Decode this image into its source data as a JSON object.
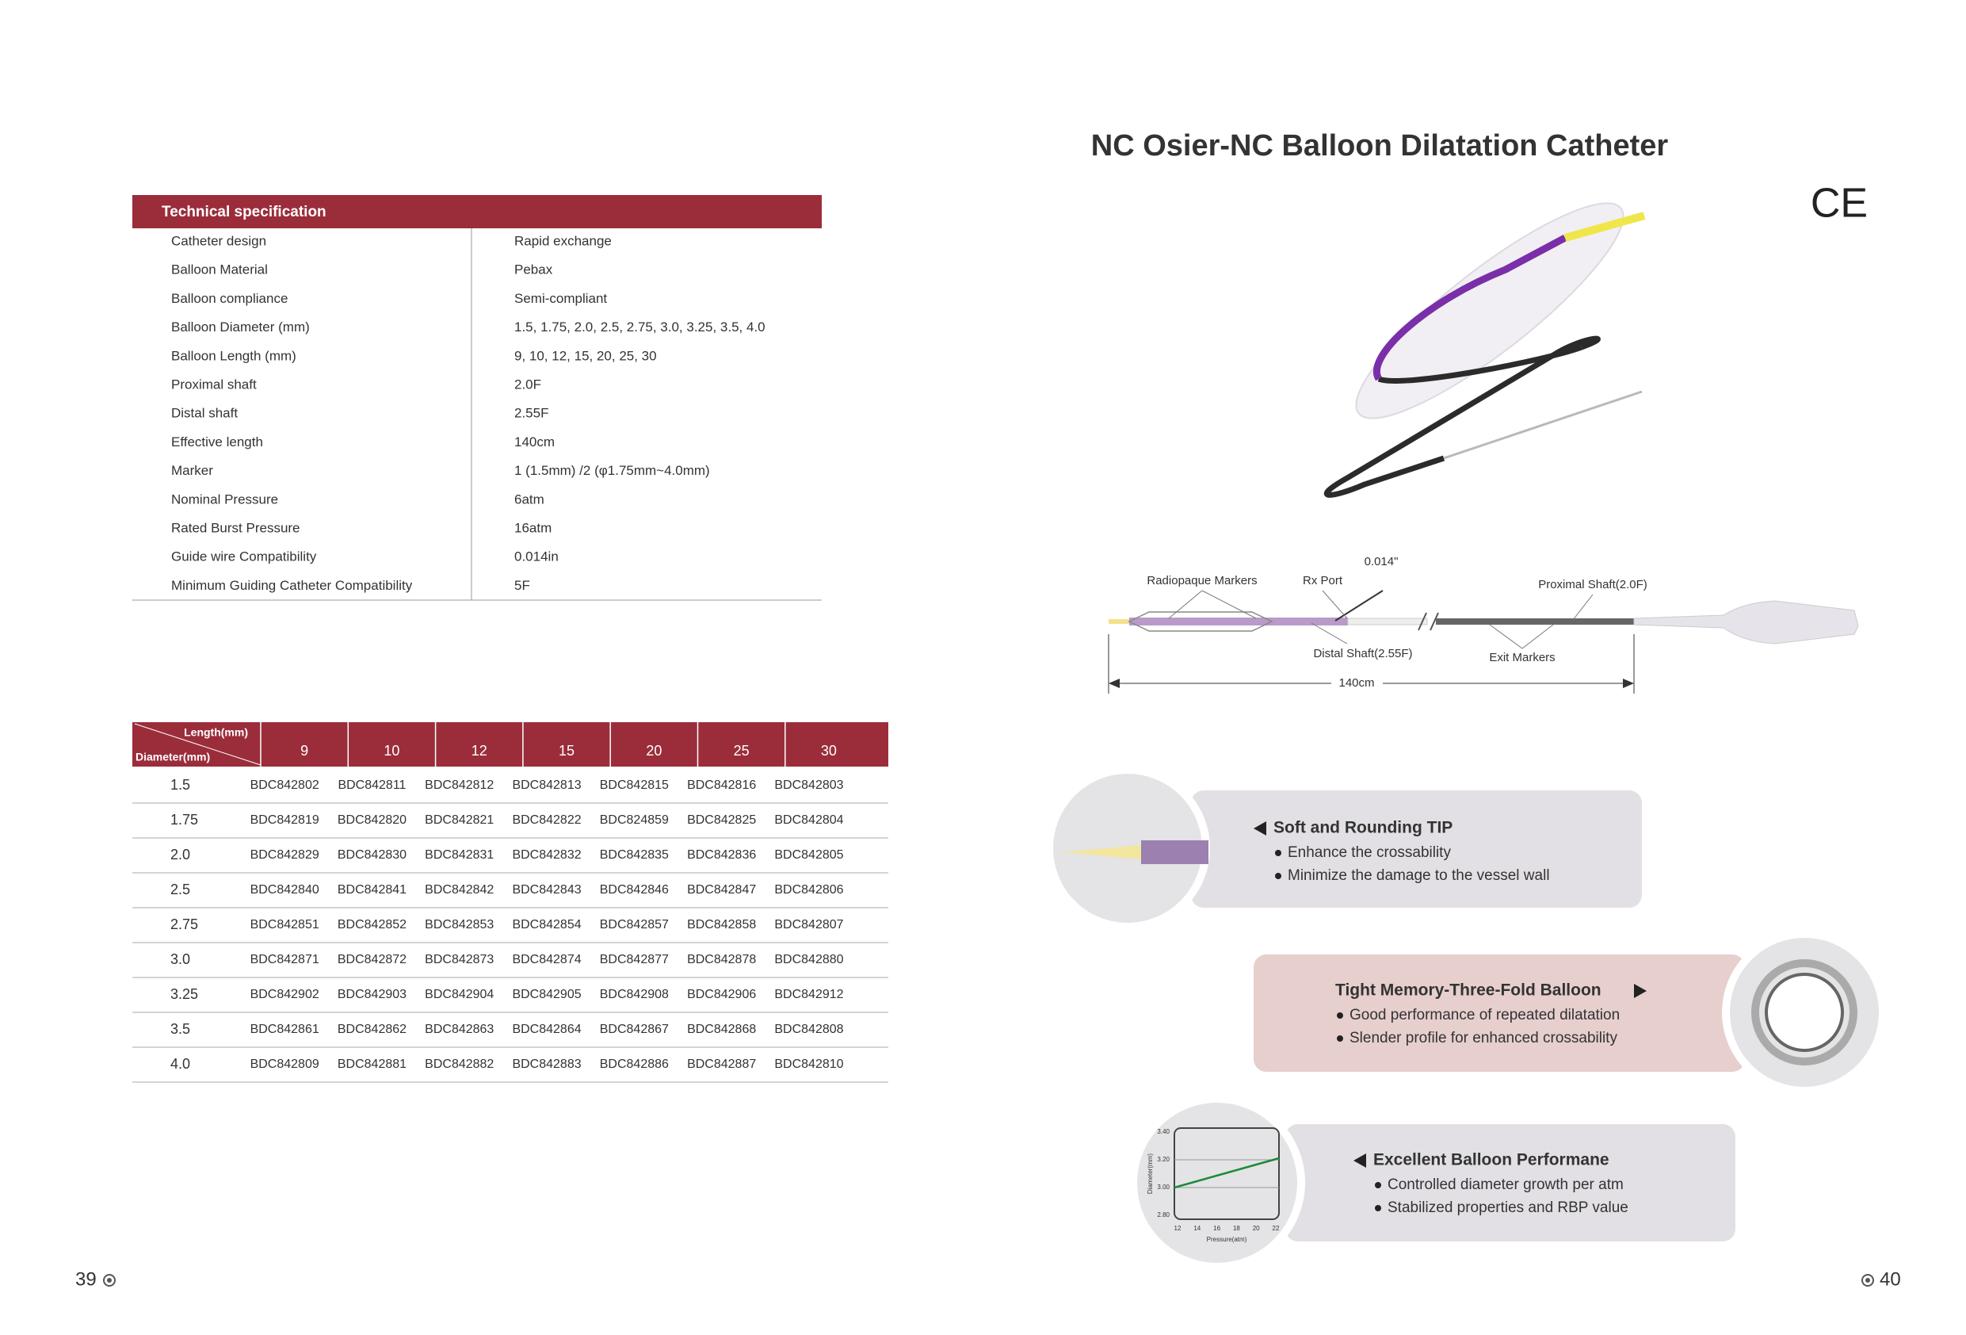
{
  "header": {
    "title": "NC Osier-NC Balloon Dilatation Catheter",
    "ce_mark": "CE"
  },
  "spec_table": {
    "title": "Technical specification",
    "rows": [
      [
        "Catheter design",
        "Rapid exchange"
      ],
      [
        "Balloon Material",
        "Pebax"
      ],
      [
        "Balloon compliance",
        "Semi-compliant"
      ],
      [
        "Balloon Diameter (mm)",
        "1.5, 1.75, 2.0, 2.5, 2.75, 3.0, 3.25, 3.5, 4.0"
      ],
      [
        "Balloon Length (mm)",
        "9, 10, 12, 15, 20, 25, 30"
      ],
      [
        "Proximal shaft",
        "2.0F"
      ],
      [
        "Distal shaft",
        "2.55F"
      ],
      [
        "Effective length",
        "140cm"
      ],
      [
        "Marker",
        "1 (1.5mm) /2 (φ1.75mm~4.0mm)"
      ],
      [
        "Nominal Pressure",
        "6atm"
      ],
      [
        "Rated Burst Pressure",
        "16atm"
      ],
      [
        "Guide wire Compatibility",
        "0.014in"
      ],
      [
        "Minimum Guiding Catheter Compatibility",
        "5F"
      ]
    ]
  },
  "code_table": {
    "length_label": "Length(mm)",
    "diameter_label": "Diameter(mm)",
    "lengths": [
      "9",
      "10",
      "12",
      "15",
      "20",
      "25",
      "30"
    ],
    "rows": [
      {
        "diameter": "1.5",
        "codes": [
          "BDC842802",
          "BDC842811",
          "BDC842812",
          "BDC842813",
          "BDC842815",
          "BDC842816",
          "BDC842803"
        ]
      },
      {
        "diameter": "1.75",
        "codes": [
          "BDC842819",
          "BDC842820",
          "BDC842821",
          "BDC842822",
          "BDC824859",
          "BDC842825",
          "BDC842804"
        ]
      },
      {
        "diameter": "2.0",
        "codes": [
          "BDC842829",
          "BDC842830",
          "BDC842831",
          "BDC842832",
          "BDC842835",
          "BDC842836",
          "BDC842805"
        ]
      },
      {
        "diameter": "2.5",
        "codes": [
          "BDC842840",
          "BDC842841",
          "BDC842842",
          "BDC842843",
          "BDC842846",
          "BDC842847",
          "BDC842806"
        ]
      },
      {
        "diameter": "2.75",
        "codes": [
          "BDC842851",
          "BDC842852",
          "BDC842853",
          "BDC842854",
          "BDC842857",
          "BDC842858",
          "BDC842807"
        ]
      },
      {
        "diameter": "3.0",
        "codes": [
          "BDC842871",
          "BDC842872",
          "BDC842873",
          "BDC842874",
          "BDC842877",
          "BDC842878",
          "BDC842880"
        ]
      },
      {
        "diameter": "3.25",
        "codes": [
          "BDC842902",
          "BDC842903",
          "BDC842904",
          "BDC842905",
          "BDC842908",
          "BDC842906",
          "BDC842912"
        ]
      },
      {
        "diameter": "3.5",
        "codes": [
          "BDC842861",
          "BDC842862",
          "BDC842863",
          "BDC842864",
          "BDC842867",
          "BDC842868",
          "BDC842808"
        ]
      },
      {
        "diameter": "4.0",
        "codes": [
          "BDC842809",
          "BDC842881",
          "BDC842882",
          "BDC842883",
          "BDC842886",
          "BDC842887",
          "BDC842810"
        ]
      }
    ]
  },
  "diagram": {
    "radiopaque_markers": "Radiopaque Markers",
    "rx_port": "Rx Port",
    "wire_size": "0.014\"",
    "proximal_shaft": "Proximal Shaft(2.0F)",
    "distal_shaft": "Distal Shaft(2.55F)",
    "exit_markers": "Exit Markers",
    "length": "140cm"
  },
  "features": [
    {
      "title": "Soft and Rounding TIP",
      "bullets": [
        "Enhance the crossability",
        "Minimize the damage to the vessel wall"
      ]
    },
    {
      "title": "Tight Memory-Three-Fold Balloon",
      "bullets": [
        "Good performance of repeated dilatation",
        "Slender profile for enhanced crossability"
      ]
    },
    {
      "title": "Excellent Balloon Performane",
      "bullets": [
        "Controlled diameter growth per atm",
        "Stabilized properties and RBP value"
      ]
    }
  ],
  "pressure_chart": {
    "y_label": "Diameter(mm)",
    "x_label": "Pressure(atm)",
    "y_ticks": [
      "3.40",
      "3.20",
      "3.00",
      "2.80"
    ],
    "x_ticks": [
      "12",
      "14",
      "16",
      "18",
      "20",
      "22"
    ]
  },
  "page_numbers": {
    "left": "39",
    "right": "40"
  }
}
